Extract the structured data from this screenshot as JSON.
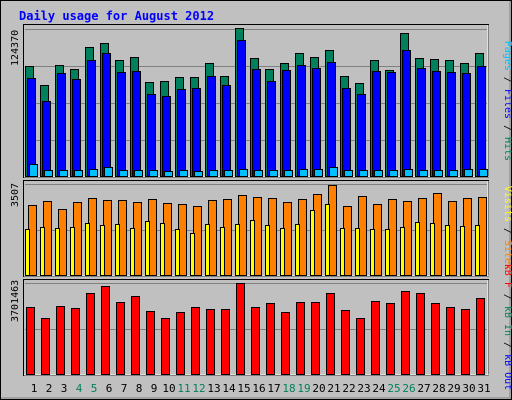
{
  "title": "Daily usage for August 2012",
  "colors": {
    "background": "#c0c0c0",
    "title": "#0000ff",
    "hits": "#00805c",
    "files": "#0000ff",
    "pages": "#00c0ff",
    "visits": "#ffff00",
    "sites": "#ff8000",
    "kbin": "#00805c",
    "kbout": "#0000ff",
    "kbf": "#ff0000",
    "weekday_label": "#000000",
    "weekend_label": "#00805c"
  },
  "chart_data": [
    {
      "type": "bar",
      "panel": "hits-files-pages",
      "ymax_label": "124370",
      "ylim": [
        0,
        124370
      ],
      "legend": {
        "pages": "Pages",
        "sep1": " / ",
        "files": "Files",
        "sep2": " / ",
        "hits": "Hits"
      },
      "categories": [
        "1",
        "2",
        "3",
        "4",
        "5",
        "6",
        "7",
        "8",
        "9",
        "10",
        "11",
        "12",
        "13",
        "14",
        "15",
        "16",
        "17",
        "18",
        "19",
        "20",
        "21",
        "22",
        "23",
        "24",
        "25",
        "26",
        "27",
        "28",
        "29",
        "30",
        "31"
      ],
      "series": [
        {
          "name": "Hits",
          "values": [
            93000,
            77000,
            94000,
            91000,
            109000,
            113000,
            98000,
            101000,
            80000,
            81000,
            84000,
            84000,
            96000,
            85000,
            125000,
            100000,
            91000,
            96000,
            104000,
            101000,
            107000,
            85000,
            79000,
            98000,
            90000,
            121000,
            100000,
            99000,
            98000,
            96000,
            104000
          ]
        },
        {
          "name": "Files",
          "values": [
            83000,
            64000,
            87000,
            82000,
            98000,
            104000,
            88000,
            89000,
            70000,
            68000,
            74000,
            75000,
            85000,
            77000,
            115000,
            91000,
            81000,
            90000,
            94000,
            92000,
            97000,
            75000,
            70000,
            89000,
            88000,
            107000,
            92000,
            89000,
            88000,
            87000,
            93000
          ]
        },
        {
          "name": "Pages",
          "values": [
            11000,
            6000,
            6000,
            5500,
            7000,
            8000,
            6000,
            6000,
            5500,
            5000,
            5500,
            5000,
            6000,
            6000,
            7000,
            6000,
            5500,
            6000,
            6500,
            7000,
            8000,
            6000,
            5500,
            5500,
            5500,
            7000,
            6000,
            6000,
            6000,
            6500,
            7000
          ]
        }
      ]
    },
    {
      "type": "bar",
      "panel": "visits-sites",
      "ymax_label": "3507",
      "ylim": [
        0,
        3507
      ],
      "legend": {
        "visits": "Visits",
        "sep1": " / ",
        "sites": "Sites"
      },
      "series": [
        {
          "name": "Sites",
          "values": [
            2720,
            2840,
            2550,
            2830,
            2960,
            2880,
            2900,
            2820,
            2940,
            2800,
            2750,
            2650,
            2900,
            2950,
            3070,
            3020,
            2990,
            2820,
            2920,
            3110,
            3480,
            2670,
            3040,
            2750,
            2930,
            2860,
            2990,
            3150,
            2870,
            2980,
            3020
          ]
        },
        {
          "name": "Visits",
          "values": [
            1810,
            1870,
            1830,
            1850,
            2020,
            1960,
            1990,
            1830,
            2100,
            2010,
            1790,
            1650,
            1990,
            1860,
            2000,
            2140,
            1960,
            1840,
            2000,
            2530,
            2750,
            1820,
            1820,
            1800,
            1810,
            1850,
            2050,
            2010,
            1930,
            1890,
            1950
          ]
        }
      ]
    },
    {
      "type": "bar",
      "panel": "kbf-kbin-kbout",
      "ymax_label": "3701463",
      "ylim": [
        0,
        3701463
      ],
      "legend": {
        "kbf": "kB F",
        "sep1": " / ",
        "kbin": "kB In",
        "sep2": " / ",
        "kbout": "kB Out"
      },
      "series": [
        {
          "name": "kB F",
          "values": [
            2750000,
            2290000,
            2790000,
            2700000,
            3280000,
            3580000,
            2950000,
            3160000,
            2560000,
            2290000,
            2540000,
            2750000,
            2650000,
            2650000,
            3701463,
            2750000,
            2880000,
            2520000,
            2950000,
            2950000,
            3300000,
            2620000,
            2290000,
            2980000,
            2880000,
            3380000,
            3280000,
            2880000,
            2750000,
            2650000,
            3100000
          ]
        },
        {
          "name": "kB In",
          "values": [
            0,
            0,
            0,
            0,
            0,
            0,
            0,
            0,
            0,
            0,
            0,
            0,
            0,
            0,
            0,
            0,
            0,
            0,
            0,
            0,
            0,
            0,
            0,
            0,
            0,
            0,
            0,
            0,
            0,
            0,
            0
          ]
        },
        {
          "name": "kB Out",
          "values": [
            0,
            0,
            0,
            0,
            0,
            0,
            0,
            0,
            0,
            0,
            0,
            0,
            0,
            0,
            0,
            0,
            0,
            0,
            0,
            0,
            0,
            0,
            0,
            0,
            0,
            0,
            0,
            0,
            0,
            0,
            0
          ]
        }
      ]
    }
  ],
  "x_axis": {
    "labels": [
      "1",
      "2",
      "3",
      "4",
      "5",
      "6",
      "7",
      "8",
      "9",
      "10",
      "11",
      "12",
      "13",
      "14",
      "15",
      "16",
      "17",
      "18",
      "19",
      "20",
      "21",
      "22",
      "23",
      "24",
      "25",
      "26",
      "27",
      "28",
      "29",
      "30",
      "31"
    ],
    "weekend": [
      false,
      false,
      false,
      true,
      true,
      false,
      false,
      false,
      false,
      false,
      true,
      true,
      false,
      false,
      false,
      false,
      false,
      true,
      true,
      false,
      false,
      false,
      false,
      false,
      true,
      true,
      false,
      false,
      false,
      false,
      false
    ]
  }
}
